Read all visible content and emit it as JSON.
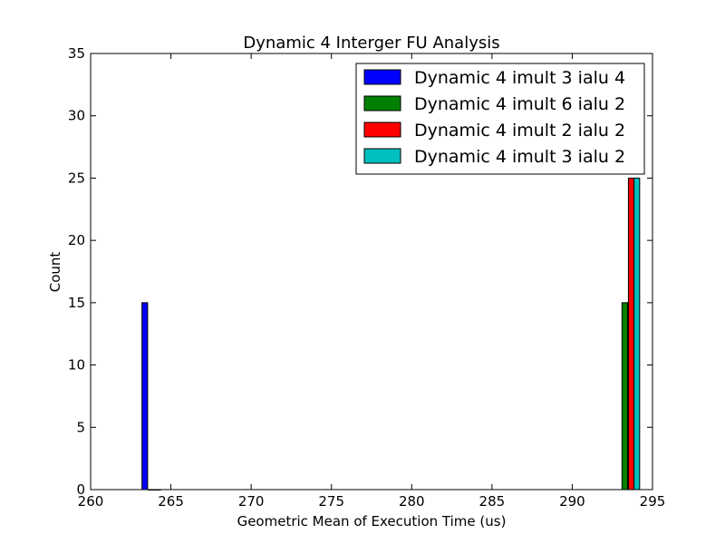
{
  "chart_data": {
    "type": "bar",
    "title": "Dynamic 4 Interger FU Analysis",
    "xlabel": "Geometric Mean of Execution Time (us)",
    "ylabel": "Count",
    "xlim": [
      260,
      295
    ],
    "ylim": [
      0,
      35
    ],
    "x_ticks": [
      "260",
      "265",
      "270",
      "275",
      "280",
      "285",
      "290",
      "295"
    ],
    "y_ticks": [
      "0",
      "5",
      "10",
      "15",
      "20",
      "25",
      "30",
      "35"
    ],
    "grid": false,
    "legend_position": "top-right",
    "series": [
      {
        "name": "Dynamic 4 imult 3 ialu 4",
        "color": "#0000ff",
        "bins": [
          {
            "x": 263.2,
            "value": 15
          },
          {
            "x": 263.6,
            "value": 0
          },
          {
            "x": 264.0,
            "value": 0
          }
        ]
      },
      {
        "name": "Dynamic 4 imult 6 ialu 2",
        "color": "#008000",
        "bins": [
          {
            "x": 293.1,
            "value": 15
          }
        ]
      },
      {
        "name": "Dynamic 4 imult 2 ialu 2",
        "color": "#ff0000",
        "bins": [
          {
            "x": 293.5,
            "value": 25
          }
        ]
      },
      {
        "name": "Dynamic 4 imult 3 ialu 2",
        "color": "#00bfbf",
        "bins": [
          {
            "x": 293.85,
            "value": 25
          }
        ]
      }
    ]
  }
}
